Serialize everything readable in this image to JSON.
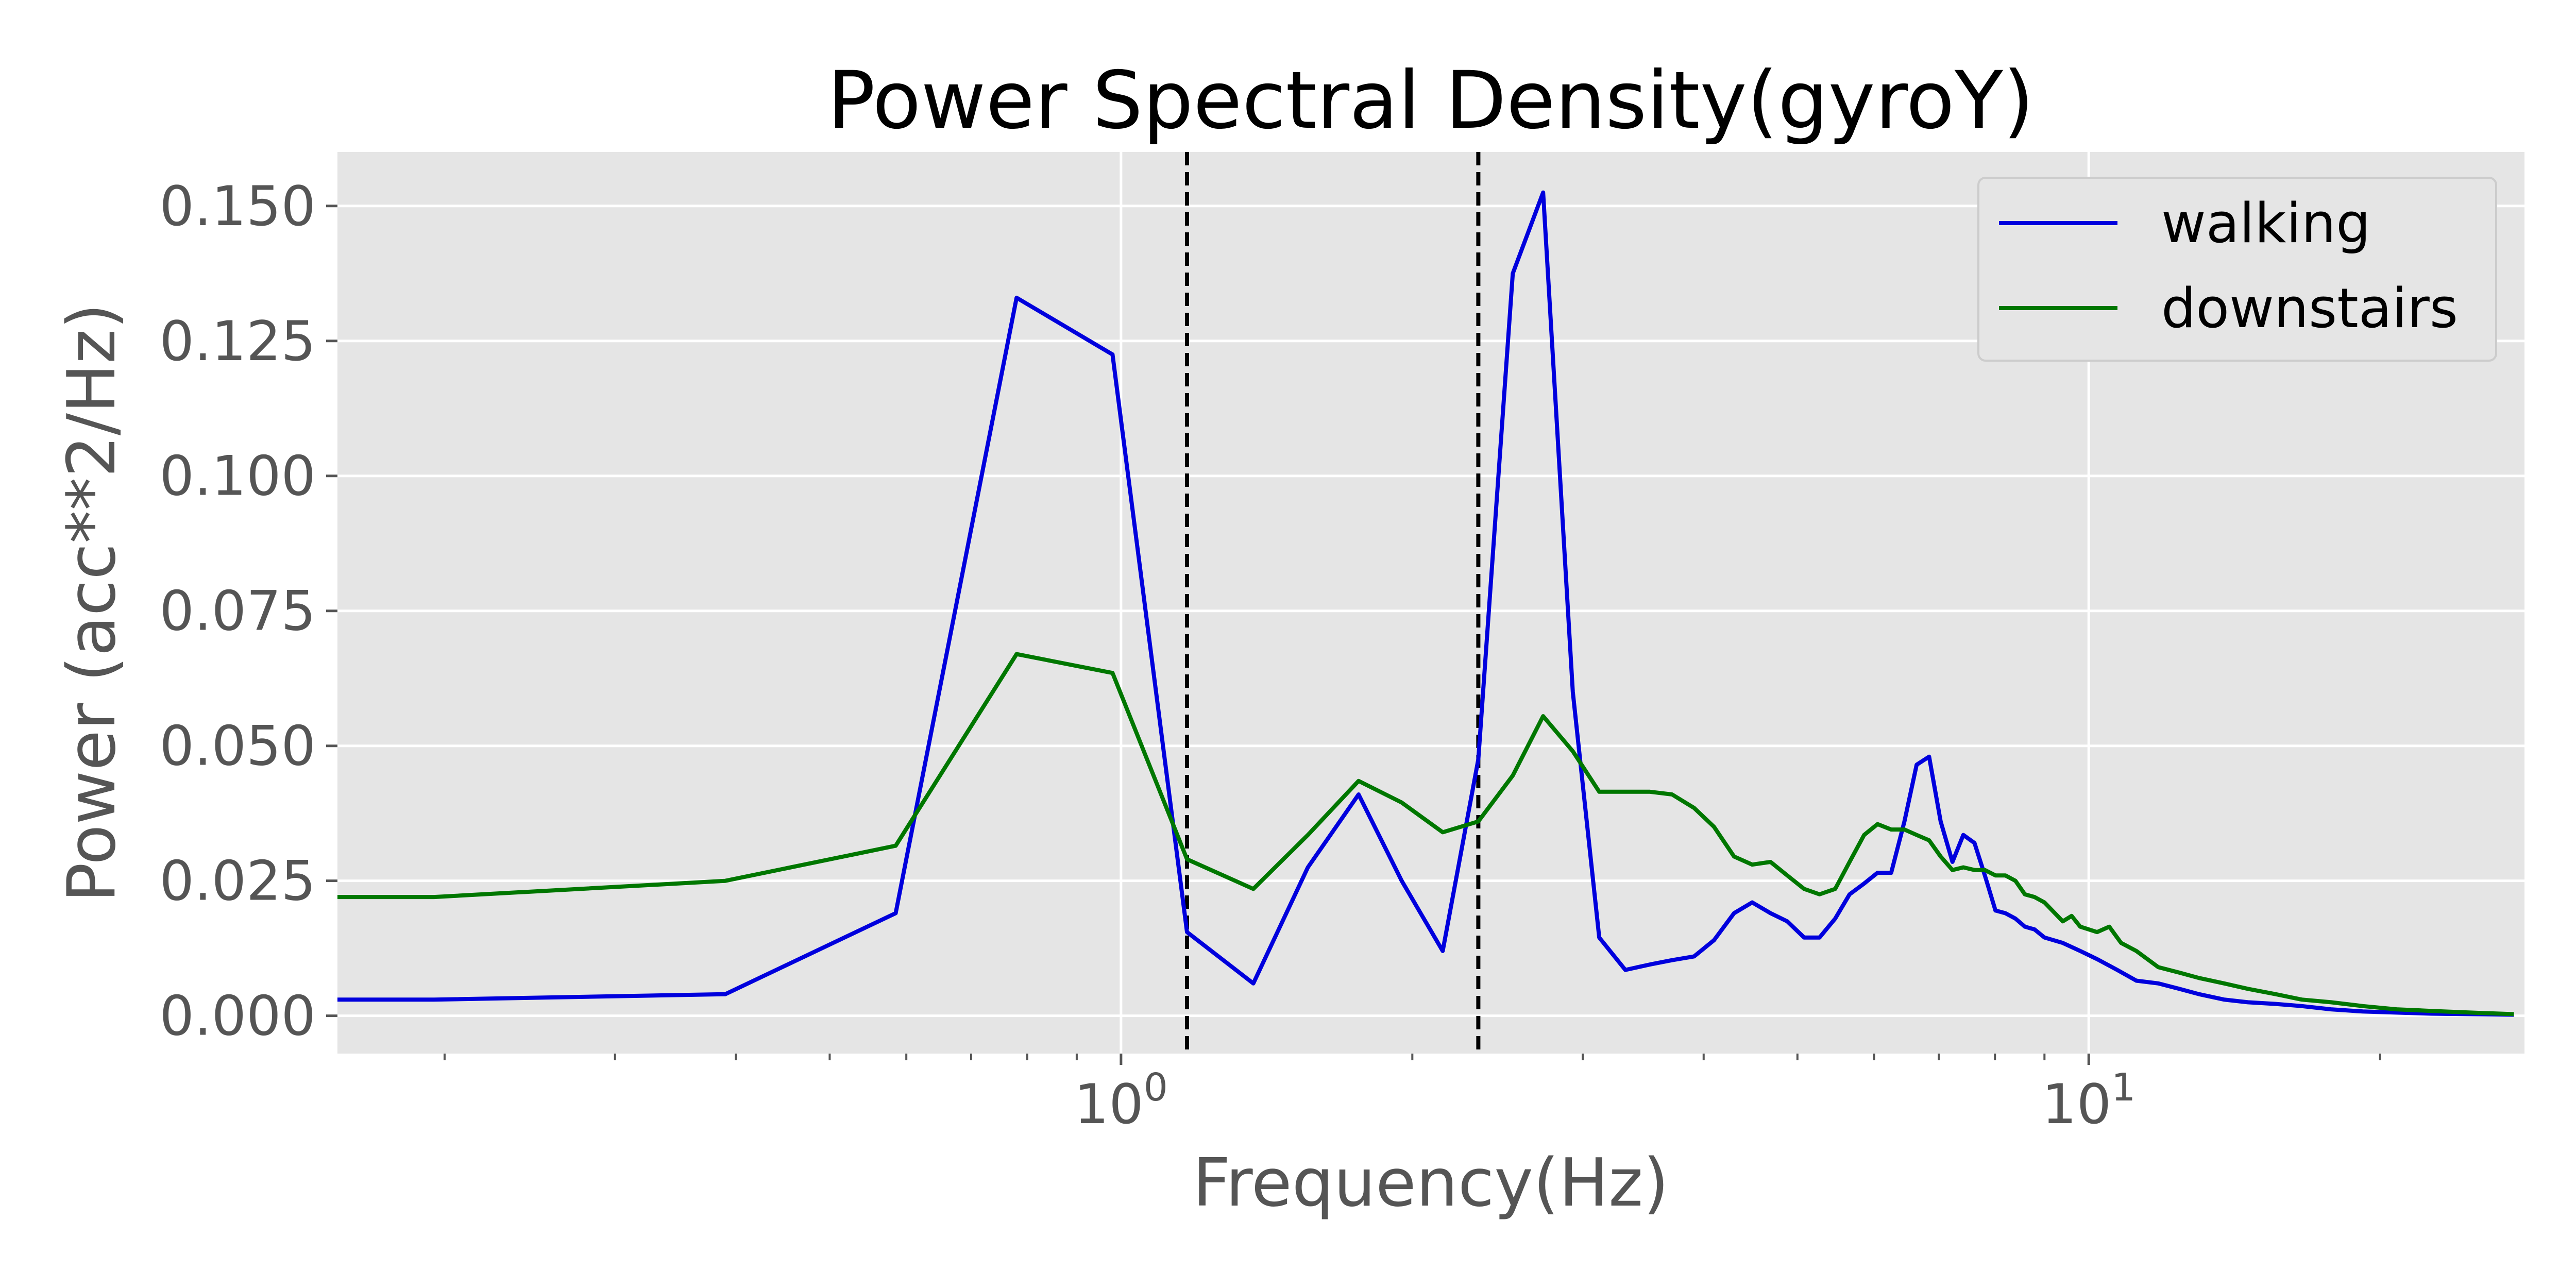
{
  "chart_data": {
    "type": "line",
    "title": "Power Spectral Density(gyroY)",
    "xlabel": "Frequency(Hz)",
    "ylabel": "Power (acc**2/Hz)",
    "x_scale": "log",
    "xlim": [
      0.155,
      28.2
    ],
    "ylim": [
      -0.007,
      0.16
    ],
    "grid": true,
    "legend_position": "top-right",
    "x_ticks": [
      {
        "value": 1,
        "base": "10",
        "exponent": "0"
      },
      {
        "value": 10,
        "base": "10",
        "exponent": "1"
      }
    ],
    "y_ticks": [
      {
        "value": 0.0,
        "label": "0.000"
      },
      {
        "value": 0.025,
        "label": "0.025"
      },
      {
        "value": 0.05,
        "label": "0.050"
      },
      {
        "value": 0.075,
        "label": "0.075"
      },
      {
        "value": 0.1,
        "label": "0.100"
      },
      {
        "value": 0.125,
        "label": "0.125"
      },
      {
        "value": 0.15,
        "label": "0.150"
      }
    ],
    "vlines": [
      1.17,
      2.34
    ],
    "series": [
      {
        "name": "walking",
        "color": "#0000dd",
        "points": [
          [
            0.155,
            0.003
          ],
          [
            0.195,
            0.003
          ],
          [
            0.39,
            0.004
          ],
          [
            0.585,
            0.019
          ],
          [
            0.78,
            0.133
          ],
          [
            0.98,
            0.1225
          ],
          [
            1.17,
            0.0155
          ],
          [
            1.37,
            0.006
          ],
          [
            1.56,
            0.0275
          ],
          [
            1.76,
            0.041
          ],
          [
            1.95,
            0.025
          ],
          [
            2.15,
            0.012
          ],
          [
            2.34,
            0.0475
          ],
          [
            2.54,
            0.1375
          ],
          [
            2.73,
            0.1525
          ],
          [
            2.93,
            0.06
          ],
          [
            3.12,
            0.0145
          ],
          [
            3.32,
            0.0085
          ],
          [
            3.52,
            0.0095
          ],
          [
            3.71,
            0.0103
          ],
          [
            3.91,
            0.011
          ],
          [
            4.1,
            0.014
          ],
          [
            4.3,
            0.019
          ],
          [
            4.49,
            0.021
          ],
          [
            4.69,
            0.019
          ],
          [
            4.88,
            0.0175
          ],
          [
            5.08,
            0.0145
          ],
          [
            5.27,
            0.0145
          ],
          [
            5.47,
            0.018
          ],
          [
            5.66,
            0.0225
          ],
          [
            5.86,
            0.0245
          ],
          [
            6.05,
            0.0265
          ],
          [
            6.25,
            0.0265
          ],
          [
            6.45,
            0.036
          ],
          [
            6.64,
            0.0465
          ],
          [
            6.84,
            0.048
          ],
          [
            7.03,
            0.036
          ],
          [
            7.23,
            0.0285
          ],
          [
            7.42,
            0.0335
          ],
          [
            7.62,
            0.032
          ],
          [
            7.81,
            0.026
          ],
          [
            8.01,
            0.0195
          ],
          [
            8.2,
            0.019
          ],
          [
            8.4,
            0.018
          ],
          [
            8.59,
            0.0165
          ],
          [
            8.79,
            0.016
          ],
          [
            9.0,
            0.0145
          ],
          [
            9.4,
            0.0135
          ],
          [
            9.8,
            0.012
          ],
          [
            10.2,
            0.0105
          ],
          [
            10.7,
            0.0085
          ],
          [
            11.2,
            0.0065
          ],
          [
            11.8,
            0.006
          ],
          [
            12.4,
            0.005
          ],
          [
            13.0,
            0.004
          ],
          [
            13.8,
            0.003
          ],
          [
            14.6,
            0.0025
          ],
          [
            15.6,
            0.0022
          ],
          [
            16.6,
            0.0018
          ],
          [
            17.8,
            0.0012
          ],
          [
            19.2,
            0.0008
          ],
          [
            20.8,
            0.0006
          ],
          [
            22.6,
            0.0004
          ],
          [
            24.8,
            0.0003
          ],
          [
            27.5,
            0.0002
          ]
        ]
      },
      {
        "name": "downstairs",
        "color": "#007700",
        "points": [
          [
            0.155,
            0.022
          ],
          [
            0.195,
            0.022
          ],
          [
            0.39,
            0.025
          ],
          [
            0.585,
            0.0315
          ],
          [
            0.78,
            0.067
          ],
          [
            0.98,
            0.0635
          ],
          [
            1.17,
            0.029
          ],
          [
            1.37,
            0.0235
          ],
          [
            1.56,
            0.0335
          ],
          [
            1.76,
            0.0435
          ],
          [
            1.95,
            0.0395
          ],
          [
            2.15,
            0.034
          ],
          [
            2.34,
            0.036
          ],
          [
            2.54,
            0.0445
          ],
          [
            2.73,
            0.0555
          ],
          [
            2.93,
            0.049
          ],
          [
            3.12,
            0.0415
          ],
          [
            3.32,
            0.0415
          ],
          [
            3.52,
            0.0415
          ],
          [
            3.71,
            0.041
          ],
          [
            3.91,
            0.0385
          ],
          [
            4.1,
            0.035
          ],
          [
            4.3,
            0.0295
          ],
          [
            4.49,
            0.028
          ],
          [
            4.69,
            0.0285
          ],
          [
            4.88,
            0.026
          ],
          [
            5.08,
            0.0235
          ],
          [
            5.27,
            0.0225
          ],
          [
            5.47,
            0.0235
          ],
          [
            5.66,
            0.0285
          ],
          [
            5.86,
            0.0335
          ],
          [
            6.05,
            0.0355
          ],
          [
            6.25,
            0.0345
          ],
          [
            6.45,
            0.0345
          ],
          [
            6.64,
            0.0335
          ],
          [
            6.84,
            0.0325
          ],
          [
            7.03,
            0.0295
          ],
          [
            7.23,
            0.027
          ],
          [
            7.42,
            0.0275
          ],
          [
            7.62,
            0.027
          ],
          [
            7.81,
            0.027
          ],
          [
            8.01,
            0.026
          ],
          [
            8.2,
            0.026
          ],
          [
            8.4,
            0.025
          ],
          [
            8.59,
            0.0225
          ],
          [
            8.79,
            0.022
          ],
          [
            9.0,
            0.021
          ],
          [
            9.4,
            0.0175
          ],
          [
            9.6,
            0.0185
          ],
          [
            9.8,
            0.0165
          ],
          [
            10.2,
            0.0155
          ],
          [
            10.5,
            0.0165
          ],
          [
            10.8,
            0.0135
          ],
          [
            11.2,
            0.012
          ],
          [
            11.8,
            0.009
          ],
          [
            12.4,
            0.008
          ],
          [
            13.0,
            0.007
          ],
          [
            13.8,
            0.006
          ],
          [
            14.6,
            0.005
          ],
          [
            15.6,
            0.004
          ],
          [
            16.6,
            0.003
          ],
          [
            17.8,
            0.0025
          ],
          [
            19.2,
            0.0018
          ],
          [
            20.8,
            0.0012
          ],
          [
            22.6,
            0.0009
          ],
          [
            24.8,
            0.0006
          ],
          [
            27.5,
            0.0003
          ]
        ]
      }
    ]
  }
}
